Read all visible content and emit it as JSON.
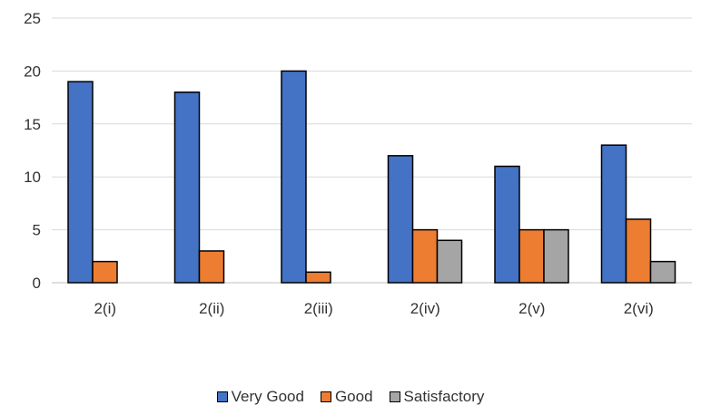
{
  "chart_data": {
    "type": "bar",
    "categories": [
      "2(i)",
      "2(ii)",
      "2(iii)",
      "2(iv)",
      "2(v)",
      "2(vi)"
    ],
    "series": [
      {
        "name": "Very Good",
        "color": "#4472C4",
        "values": [
          19,
          18,
          20,
          12,
          11,
          13
        ]
      },
      {
        "name": "Good",
        "color": "#ED7D31",
        "values": [
          2,
          3,
          1,
          5,
          5,
          6
        ]
      },
      {
        "name": "Satisfactory",
        "color": "#A5A5A5",
        "values": [
          0,
          0,
          0,
          4,
          5,
          2
        ]
      }
    ],
    "ylim": [
      0,
      25
    ],
    "yticks": [
      0,
      5,
      10,
      15,
      20,
      25
    ],
    "grid": true,
    "legend_position": "bottom"
  }
}
